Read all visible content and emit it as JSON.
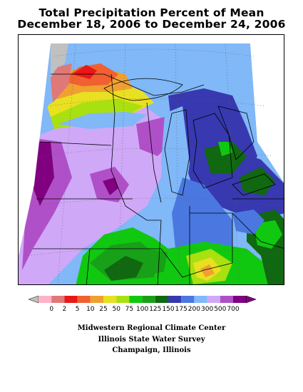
{
  "title": {
    "line1": "Total Precipitation Percent of Mean",
    "line2": "December 18, 2006 to December 24, 2006"
  },
  "legend": {
    "labels": [
      "0",
      "2",
      "5",
      "10",
      "25",
      "50",
      "75",
      "100",
      "125",
      "150",
      "175",
      "200",
      "300",
      "500",
      "700"
    ],
    "colors": [
      "#ffb3c8",
      "#e07878",
      "#e81818",
      "#f06030",
      "#f0a030",
      "#e8e020",
      "#a8e010",
      "#10c810",
      "#18a018",
      "#106810",
      "#3838b0",
      "#4a78e0",
      "#80b8f8",
      "#d0a8f8",
      "#b050c8",
      "#800080"
    ],
    "left_arrow_color": "#c0c0c0",
    "right_arrow_color": "#800080"
  },
  "credits": {
    "line1": "Midwestern Regional Climate Center",
    "line2": "Illinois State Water Survey",
    "line3": "Champaign, Illinois"
  }
}
